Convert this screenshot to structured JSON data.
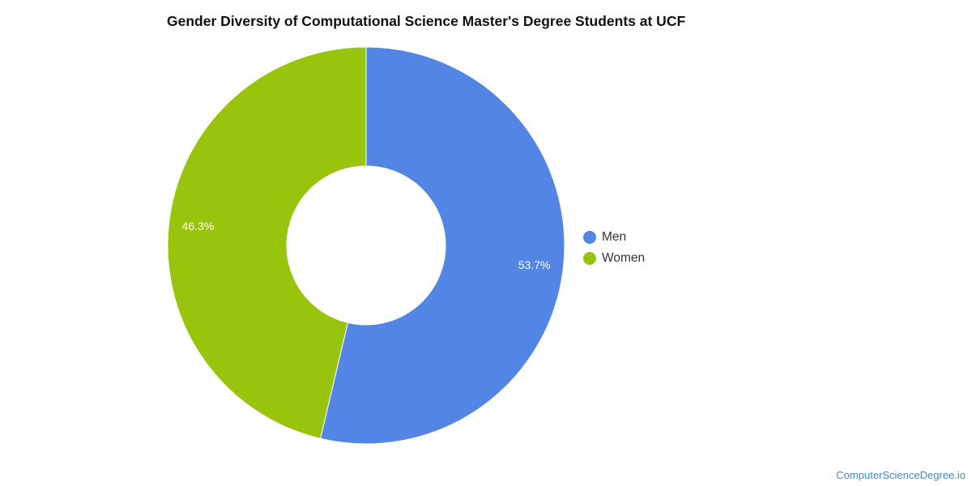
{
  "chart_data": {
    "type": "pie",
    "title": "Gender Diversity of Computational Science Master's Degree Students at UCF",
    "donut": true,
    "slices": [
      {
        "label": "Men",
        "value": 53.7,
        "display": "53.7%",
        "color": "#5386e4"
      },
      {
        "label": "Women",
        "value": 46.3,
        "display": "46.3%",
        "color": "#98c40d"
      }
    ],
    "legend_position": "right"
  },
  "watermark": "ComputerScienceDegree.io"
}
